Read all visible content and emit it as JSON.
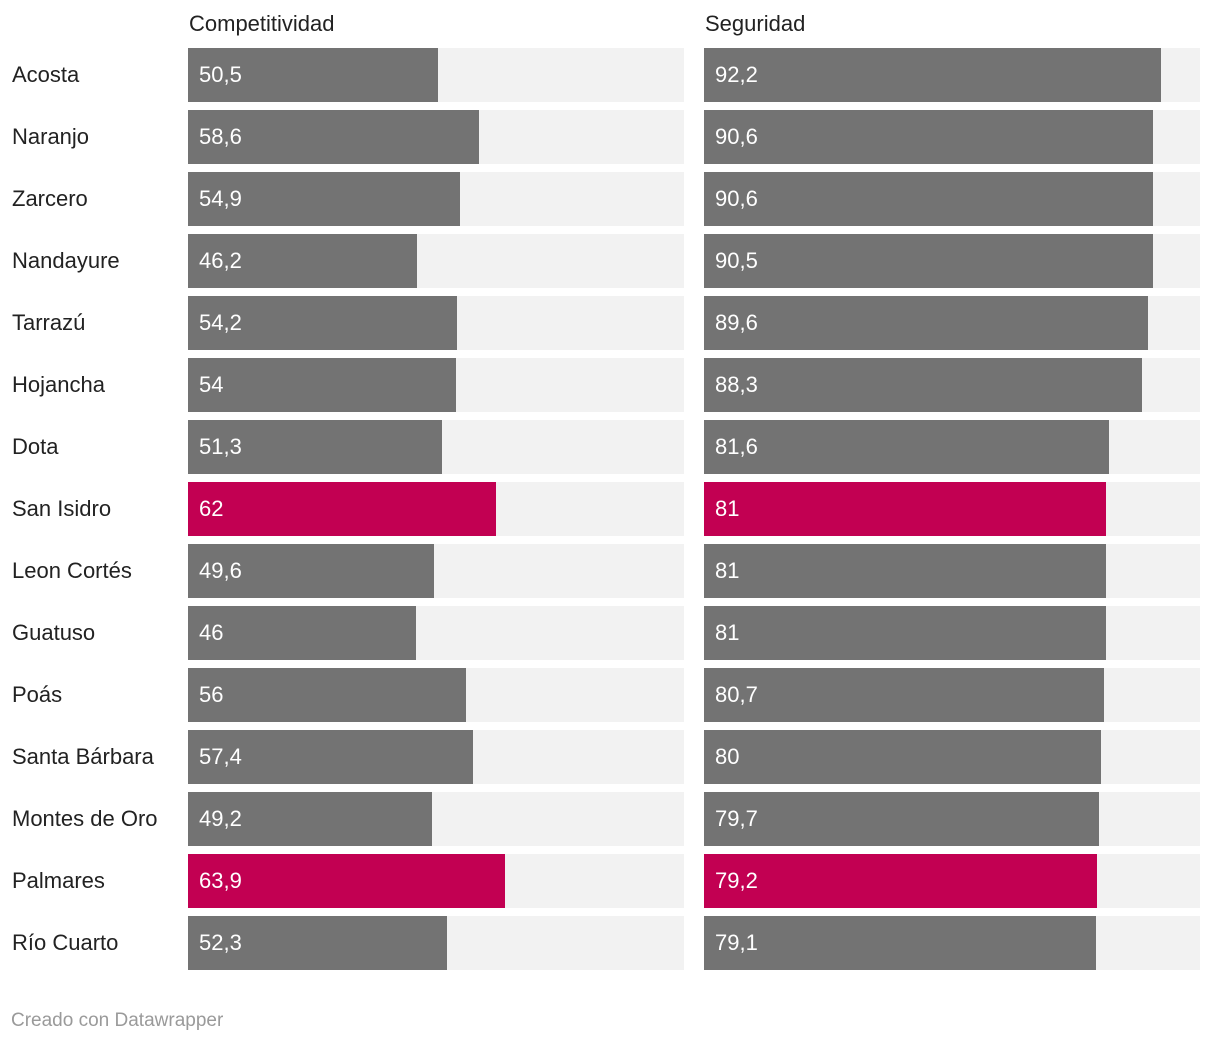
{
  "chart_data": {
    "type": "bar",
    "orientation": "horizontal",
    "categories": [
      "Acosta",
      "Naranjo",
      "Zarcero",
      "Nandayure",
      "Tarrazú",
      "Hojancha",
      "Dota",
      "San Isidro",
      "Leon Cortés",
      "Guatuso",
      "Poás",
      "Santa Bárbara",
      "Montes de Oro",
      "Palmares",
      "Río Cuarto"
    ],
    "series": [
      {
        "name": "Competitividad",
        "values": [
          50.5,
          58.6,
          54.9,
          46.2,
          54.2,
          54,
          51.3,
          62,
          49.6,
          46,
          56,
          57.4,
          49.2,
          63.9,
          52.3
        ],
        "labels": [
          "50,5",
          "58,6",
          "54,9",
          "46,2",
          "54,2",
          "54",
          "51,3",
          "62",
          "49,6",
          "46",
          "56",
          "57,4",
          "49,2",
          "63,9",
          "52,3"
        ]
      },
      {
        "name": "Seguridad",
        "values": [
          92.2,
          90.6,
          90.6,
          90.5,
          89.6,
          88.3,
          81.6,
          81,
          81,
          81,
          80.7,
          80,
          79.7,
          79.2,
          79.1
        ],
        "labels": [
          "92,2",
          "90,6",
          "90,6",
          "90,5",
          "89,6",
          "88,3",
          "81,6",
          "81",
          "81",
          "81",
          "80,7",
          "80",
          "79,7",
          "79,2",
          "79,1"
        ]
      }
    ],
    "highlighted": [
      "San Isidro",
      "Palmares"
    ],
    "xlim": [
      0,
      100
    ],
    "colors": {
      "bar": "#737373",
      "highlight": "#c20052",
      "track": "#f2f2f2"
    },
    "title": "",
    "xlabel": "",
    "ylabel": ""
  },
  "footer": {
    "credit": "Creado con Datawrapper"
  }
}
